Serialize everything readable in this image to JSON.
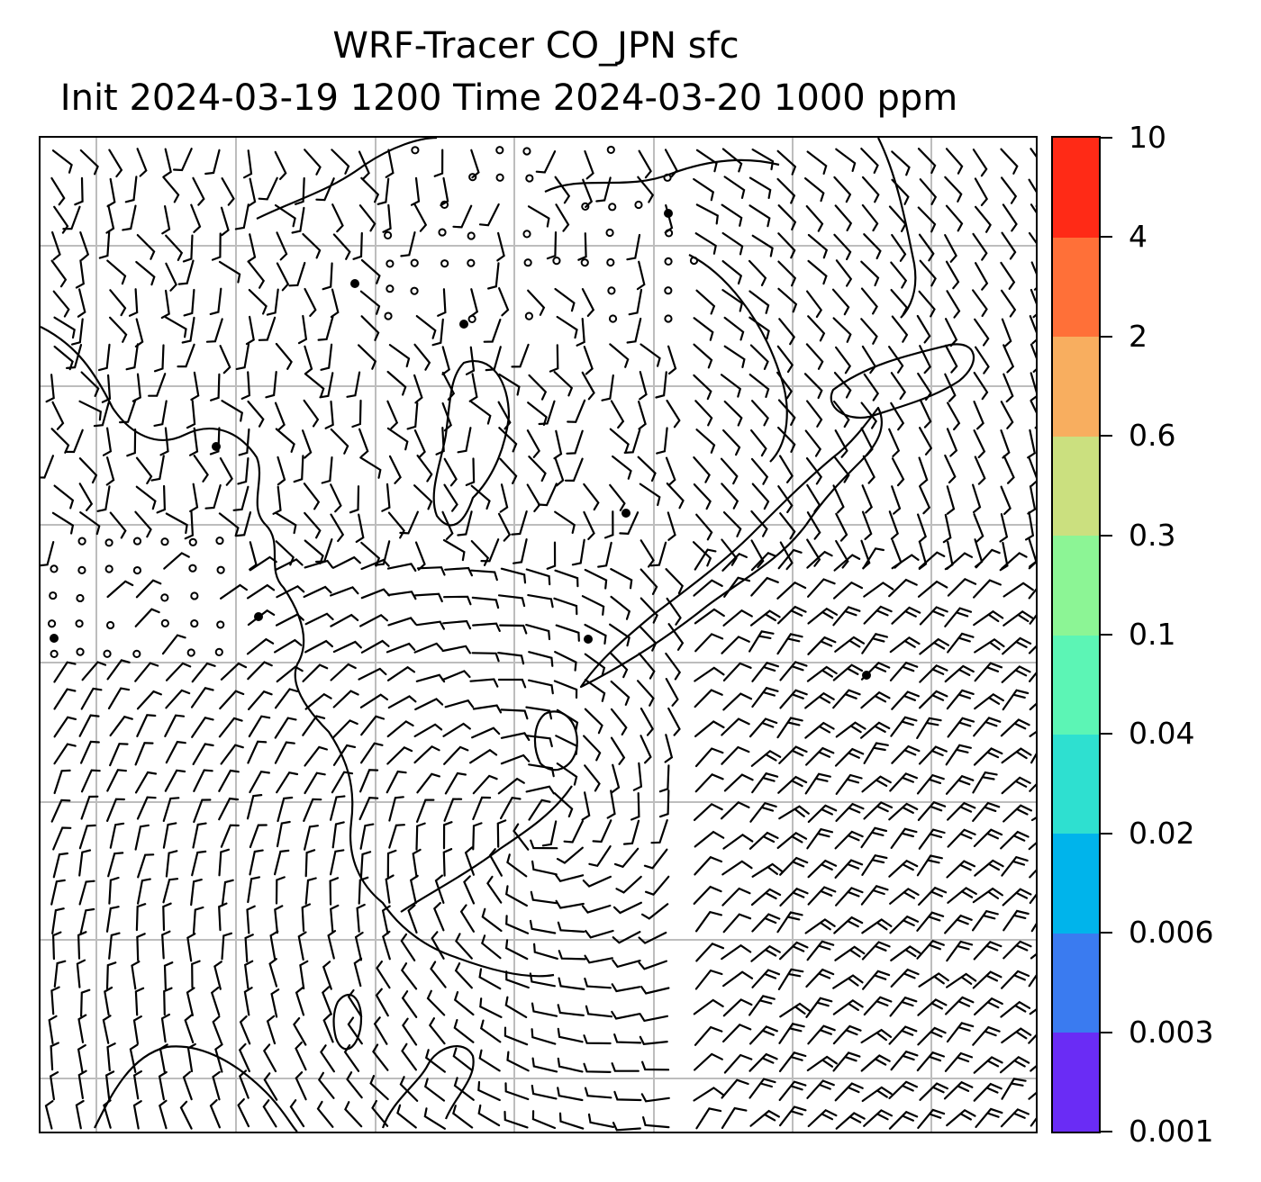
{
  "title": {
    "line1": "WRF-Tracer CO_JPN sfc",
    "line2": "Init 2024-03-19 1200 Time 2024-03-20 1000 ppm"
  },
  "map": {
    "gridlines": true,
    "coastline_color": "#000000",
    "grid_color": "#bdbdbd",
    "wind_barb_color": "#000000"
  },
  "colorbar": {
    "levels": [
      "0.001",
      "0.003",
      "0.006",
      "0.02",
      "0.04",
      "0.1",
      "0.3",
      "0.6",
      "2",
      "4",
      "10"
    ],
    "colors": [
      "#6a2cf5",
      "#3a7bf0",
      "#00b4eb",
      "#2ee0d0",
      "#5cf5b5",
      "#8cf595",
      "#cbe07f",
      "#f8ae5f",
      "#ff7038",
      "#ff2a16"
    ]
  }
}
